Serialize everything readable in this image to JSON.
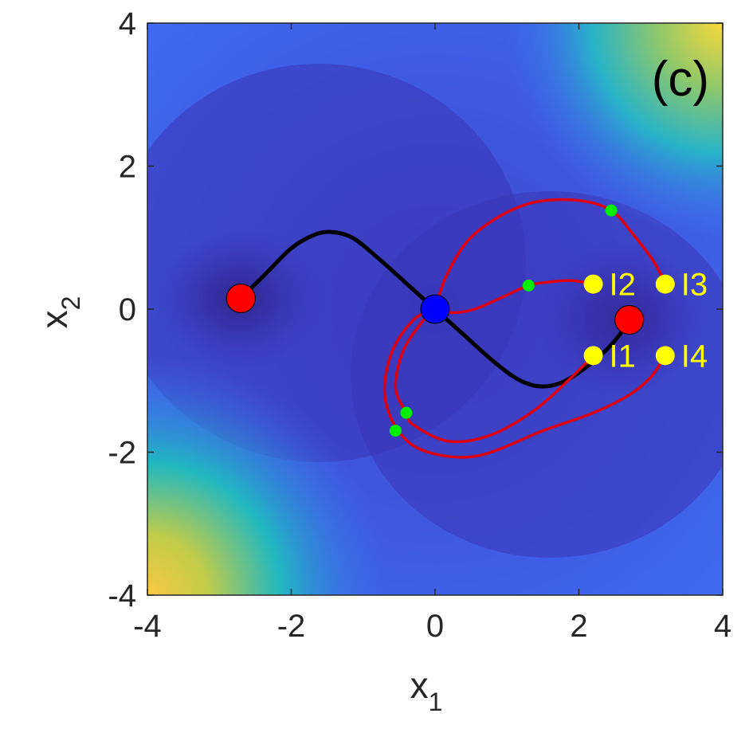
{
  "chart_data": {
    "type": "scatter",
    "panel_label": "(c)",
    "xlabel": "x",
    "xlabel_sub": "1",
    "ylabel": "x",
    "ylabel_sub": "2",
    "xlim": [
      -4,
      4
    ],
    "ylim": [
      -4,
      4
    ],
    "xticks": [
      -4,
      -2,
      0,
      2,
      4
    ],
    "yticks": [
      -4,
      -2,
      0,
      2,
      4
    ],
    "background": "filled contour map (blue-to-yellow colormap), low values dark blue near the minima, high values yellow at the top-right and bottom-left corners",
    "colors": {
      "minimum_marker": "#ff0000",
      "saddle_marker": "#0000ff",
      "initial_marker": "#ffff00",
      "intermediate_marker": "#00ee00",
      "minimum_energy_path": "#000000",
      "trajectory": "#dd0011",
      "colormap_low": "#3b2fa8",
      "colormap_mid": "#3f6af5",
      "colormap_high": "#f9d83a"
    },
    "minima": [
      {
        "x": -2.7,
        "y": 0.15
      },
      {
        "x": 2.7,
        "y": -0.15
      }
    ],
    "saddle": {
      "x": 0.0,
      "y": 0.0
    },
    "minimum_energy_path": [
      [
        -2.7,
        0.15
      ],
      [
        -2.35,
        0.5
      ],
      [
        -2.0,
        0.85
      ],
      [
        -1.7,
        1.03
      ],
      [
        -1.45,
        1.08
      ],
      [
        -1.15,
        1.0
      ],
      [
        -0.8,
        0.72
      ],
      [
        -0.4,
        0.36
      ],
      [
        0.0,
        0.0
      ],
      [
        0.4,
        -0.36
      ],
      [
        0.8,
        -0.72
      ],
      [
        1.15,
        -0.98
      ],
      [
        1.45,
        -1.08
      ],
      [
        1.75,
        -1.03
      ],
      [
        2.05,
        -0.85
      ],
      [
        2.35,
        -0.6
      ],
      [
        2.55,
        -0.38
      ],
      [
        2.7,
        -0.15
      ]
    ],
    "initial_points": [
      {
        "label": "I1",
        "x": 2.2,
        "y": -0.65
      },
      {
        "label": "I2",
        "x": 2.2,
        "y": 0.35
      },
      {
        "label": "I3",
        "x": 3.2,
        "y": 0.35
      },
      {
        "label": "I4",
        "x": 3.2,
        "y": -0.65
      }
    ],
    "trajectories": [
      {
        "from": "I1",
        "points": [
          [
            2.2,
            -0.65
          ],
          [
            1.9,
            -0.95
          ],
          [
            1.4,
            -1.4
          ],
          [
            0.8,
            -1.75
          ],
          [
            0.2,
            -1.85
          ],
          [
            -0.3,
            -1.62
          ],
          [
            -0.4,
            -1.45
          ],
          [
            -0.55,
            -1.1
          ],
          [
            -0.45,
            -0.6
          ],
          [
            -0.2,
            -0.2
          ],
          [
            0.0,
            0.0
          ]
        ]
      },
      {
        "from": "I2",
        "points": [
          [
            2.2,
            0.35
          ],
          [
            1.9,
            0.4
          ],
          [
            1.6,
            0.38
          ],
          [
            1.3,
            0.33
          ],
          [
            0.9,
            0.15
          ],
          [
            0.55,
            0.0
          ],
          [
            0.25,
            -0.05
          ],
          [
            0.0,
            0.0
          ]
        ]
      },
      {
        "from": "I3",
        "points": [
          [
            3.2,
            0.35
          ],
          [
            3.05,
            0.65
          ],
          [
            2.75,
            1.05
          ],
          [
            2.45,
            1.38
          ],
          [
            2.0,
            1.52
          ],
          [
            1.4,
            1.5
          ],
          [
            0.9,
            1.3
          ],
          [
            0.45,
            0.95
          ],
          [
            0.15,
            0.45
          ],
          [
            0.0,
            0.0
          ]
        ]
      },
      {
        "from": "I4",
        "points": [
          [
            3.2,
            -0.65
          ],
          [
            3.0,
            -0.95
          ],
          [
            2.7,
            -1.2
          ],
          [
            2.2,
            -1.45
          ],
          [
            1.5,
            -1.7
          ],
          [
            0.6,
            -2.05
          ],
          [
            -0.1,
            -2.0
          ],
          [
            -0.5,
            -1.72
          ],
          [
            -0.7,
            -1.2
          ],
          [
            -0.6,
            -0.6
          ],
          [
            -0.3,
            -0.15
          ],
          [
            0.0,
            0.0
          ]
        ]
      }
    ],
    "intermediate_points": [
      {
        "x": 1.3,
        "y": 0.33
      },
      {
        "x": 2.45,
        "y": 1.38
      },
      {
        "x": -0.4,
        "y": -1.45
      },
      {
        "x": -0.55,
        "y": -1.7
      }
    ]
  }
}
